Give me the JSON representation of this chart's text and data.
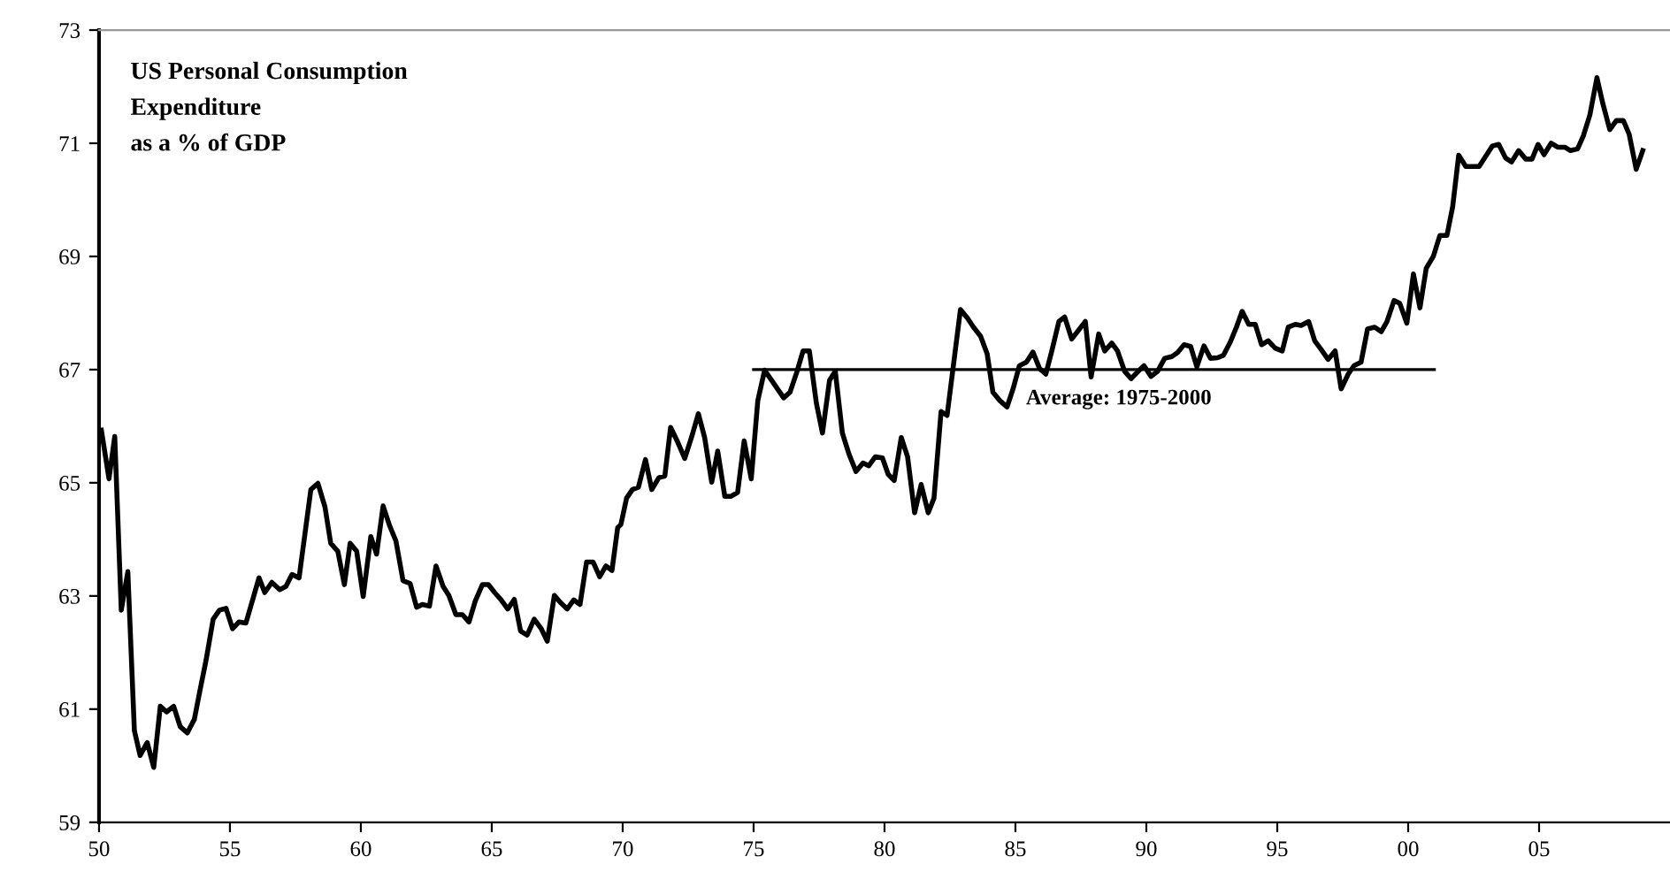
{
  "chart_data": {
    "type": "line",
    "title": "US Personal Consumption\nExpenditure\nas a % of GDP",
    "xlim": [
      1950,
      2010
    ],
    "ylim": [
      59,
      73
    ],
    "xticks": [
      {
        "value": 1950,
        "label": "50"
      },
      {
        "value": 1955,
        "label": "55"
      },
      {
        "value": 1960,
        "label": "60"
      },
      {
        "value": 1965,
        "label": "65"
      },
      {
        "value": 1970,
        "label": "70"
      },
      {
        "value": 1975,
        "label": "75"
      },
      {
        "value": 1980,
        "label": "80"
      },
      {
        "value": 1985,
        "label": "85"
      },
      {
        "value": 1990,
        "label": "90"
      },
      {
        "value": 1995,
        "label": "95"
      },
      {
        "value": 2000,
        "label": "00"
      },
      {
        "value": 2005,
        "label": "05"
      }
    ],
    "yticks": [
      59,
      61,
      63,
      65,
      67,
      69,
      71,
      73
    ],
    "grid": false,
    "legend": false,
    "marker": "none",
    "line_style": "solid",
    "annotations": [
      {
        "text": "Average: 1975-2000",
        "x": 1985.4,
        "y": 67
      }
    ],
    "series": [
      {
        "color": "#000000",
        "x": [
          1950.09,
          1950.38,
          1950.6,
          1950.85,
          1951.1,
          1951.35,
          1951.57,
          1951.84,
          1952.09,
          1952.34,
          1952.58,
          1952.85,
          1953.1,
          1953.37,
          1953.64,
          1953.86,
          1954.09,
          1954.36,
          1954.6,
          1954.85,
          1955.1,
          1955.34,
          1955.61,
          1956.11,
          1956.33,
          1956.6,
          1956.9,
          1957.14,
          1957.37,
          1957.64,
          1958.09,
          1958.36,
          1958.63,
          1958.85,
          1959.12,
          1959.37,
          1959.59,
          1959.84,
          1960.09,
          1960.38,
          1960.6,
          1960.85,
          1961.1,
          1961.34,
          1961.61,
          1961.88,
          1962.13,
          1962.35,
          1962.62,
          1962.87,
          1963.14,
          1963.36,
          1963.63,
          1963.88,
          1964.13,
          1964.37,
          1964.64,
          1964.87,
          1965.11,
          1965.36,
          1965.61,
          1965.86,
          1966.1,
          1966.35,
          1966.62,
          1966.89,
          1967.12,
          1967.39,
          1967.63,
          1967.88,
          1968.13,
          1968.37,
          1968.62,
          1968.87,
          1969.12,
          1969.36,
          1969.59,
          1969.81,
          1969.93,
          1970.15,
          1970.37,
          1970.6,
          1970.87,
          1971.11,
          1971.38,
          1971.61,
          1971.83,
          1972.1,
          1972.37,
          1972.64,
          1972.89,
          1973.13,
          1973.4,
          1973.63,
          1973.9,
          1974.14,
          1974.39,
          1974.64,
          1974.91,
          1975.16,
          1975.42,
          1975.69,
          1976.15,
          1976.39,
          1976.66,
          1976.89,
          1977.13,
          1977.4,
          1977.63,
          1977.9,
          1978.12,
          1978.39,
          1978.64,
          1978.91,
          1979.18,
          1979.4,
          1979.65,
          1979.92,
          1980.14,
          1980.37,
          1980.64,
          1980.88,
          1981.15,
          1981.4,
          1981.67,
          1981.89,
          1982.16,
          1982.39,
          1982.66,
          1982.9,
          1983.17,
          1983.4,
          1983.67,
          1983.92,
          1984.14,
          1984.41,
          1984.68,
          1984.91,
          1985.15,
          1985.42,
          1985.67,
          1985.92,
          1986.16,
          1986.39,
          1986.66,
          1986.88,
          1987.15,
          1987.67,
          1987.89,
          1988.18,
          1988.41,
          1988.68,
          1988.9,
          1989.17,
          1989.42,
          1989.69,
          1989.91,
          1990.18,
          1990.43,
          1990.7,
          1990.97,
          1991.19,
          1991.44,
          1991.69,
          1991.93,
          1992.2,
          1992.45,
          1992.72,
          1992.94,
          1993.21,
          1993.44,
          1993.66,
          1993.91,
          1994.16,
          1994.4,
          1994.65,
          1994.92,
          1995.19,
          1995.42,
          1995.69,
          1995.91,
          1996.2,
          1996.43,
          1996.67,
          1996.94,
          1997.21,
          1997.44,
          1997.71,
          1997.93,
          1998.2,
          1998.45,
          1998.72,
          1998.97,
          1999.19,
          1999.46,
          1999.68,
          1999.95,
          2000.2,
          2000.45,
          2000.69,
          2000.96,
          2001.21,
          2001.48,
          2001.7,
          2001.93,
          2002.2,
          2002.71,
          2002.96,
          2003.21,
          2003.46,
          2003.72,
          2003.95,
          2004.22,
          2004.49,
          2004.73,
          2004.96,
          2005.19,
          2005.46,
          2005.71,
          2005.98,
          2006.2,
          2006.47,
          2006.69,
          2006.94,
          2007.21,
          2007.43,
          2007.7,
          2007.95,
          2008.22,
          2008.44,
          2008.71,
          2008.96
        ],
        "values": [
          65.93,
          65.07,
          65.82,
          62.75,
          63.43,
          60.62,
          60.18,
          60.41,
          59.97,
          61.05,
          60.95,
          61.05,
          60.69,
          60.58,
          60.82,
          61.34,
          61.87,
          62.59,
          62.75,
          62.78,
          62.42,
          62.54,
          62.52,
          63.32,
          63.06,
          63.24,
          63.11,
          63.17,
          63.38,
          63.32,
          64.88,
          64.99,
          64.57,
          63.93,
          63.79,
          63.2,
          63.93,
          63.79,
          62.99,
          64.05,
          63.74,
          64.59,
          64.24,
          63.97,
          63.27,
          63.22,
          62.8,
          62.85,
          62.82,
          63.53,
          63.17,
          63.01,
          62.67,
          62.67,
          62.54,
          62.91,
          63.2,
          63.2,
          63.06,
          62.93,
          62.77,
          62.94,
          62.38,
          62.31,
          62.59,
          62.42,
          62.2,
          63.01,
          62.88,
          62.77,
          62.93,
          62.85,
          63.6,
          63.6,
          63.34,
          63.53,
          63.45,
          64.21,
          64.26,
          64.73,
          64.88,
          64.92,
          65.41,
          64.88,
          65.09,
          65.12,
          65.98,
          65.72,
          65.43,
          65.82,
          66.22,
          65.8,
          65.01,
          65.56,
          64.76,
          64.76,
          64.83,
          65.74,
          65.07,
          66.45,
          66.99,
          66.81,
          66.5,
          66.6,
          66.97,
          67.33,
          67.33,
          66.4,
          65.88,
          66.81,
          66.97,
          65.88,
          65.51,
          65.2,
          65.35,
          65.3,
          65.46,
          65.44,
          65.15,
          65.04,
          65.8,
          65.46,
          64.47,
          64.97,
          64.47,
          64.73,
          66.26,
          66.19,
          67.18,
          68.06,
          67.91,
          67.75,
          67.59,
          67.28,
          66.6,
          66.45,
          66.34,
          66.66,
          67.07,
          67.13,
          67.31,
          67.02,
          66.92,
          67.33,
          67.85,
          67.93,
          67.54,
          67.85,
          66.87,
          67.63,
          67.33,
          67.47,
          67.33,
          66.97,
          66.84,
          66.97,
          67.07,
          66.88,
          66.97,
          67.2,
          67.23,
          67.3,
          67.44,
          67.41,
          67.05,
          67.42,
          67.2,
          67.21,
          67.25,
          67.49,
          67.75,
          68.03,
          67.8,
          67.8,
          67.44,
          67.51,
          67.38,
          67.33,
          67.75,
          67.8,
          67.78,
          67.85,
          67.51,
          67.36,
          67.18,
          67.33,
          66.66,
          66.92,
          67.07,
          67.13,
          67.72,
          67.75,
          67.67,
          67.85,
          68.22,
          68.17,
          67.82,
          68.69,
          68.09,
          68.79,
          69.0,
          69.37,
          69.37,
          69.88,
          70.79,
          70.59,
          70.59,
          70.77,
          70.95,
          70.98,
          70.74,
          70.67,
          70.87,
          70.72,
          70.72,
          70.98,
          70.8,
          71.0,
          70.93,
          70.93,
          70.87,
          70.9,
          71.13,
          71.5,
          72.16,
          71.71,
          71.24,
          71.4,
          71.4,
          71.16,
          70.54,
          70.87
        ]
      },
      {
        "color": "#000000",
        "type": "line",
        "x": [
          1975,
          2001
        ],
        "values": [
          67,
          67
        ]
      }
    ]
  }
}
